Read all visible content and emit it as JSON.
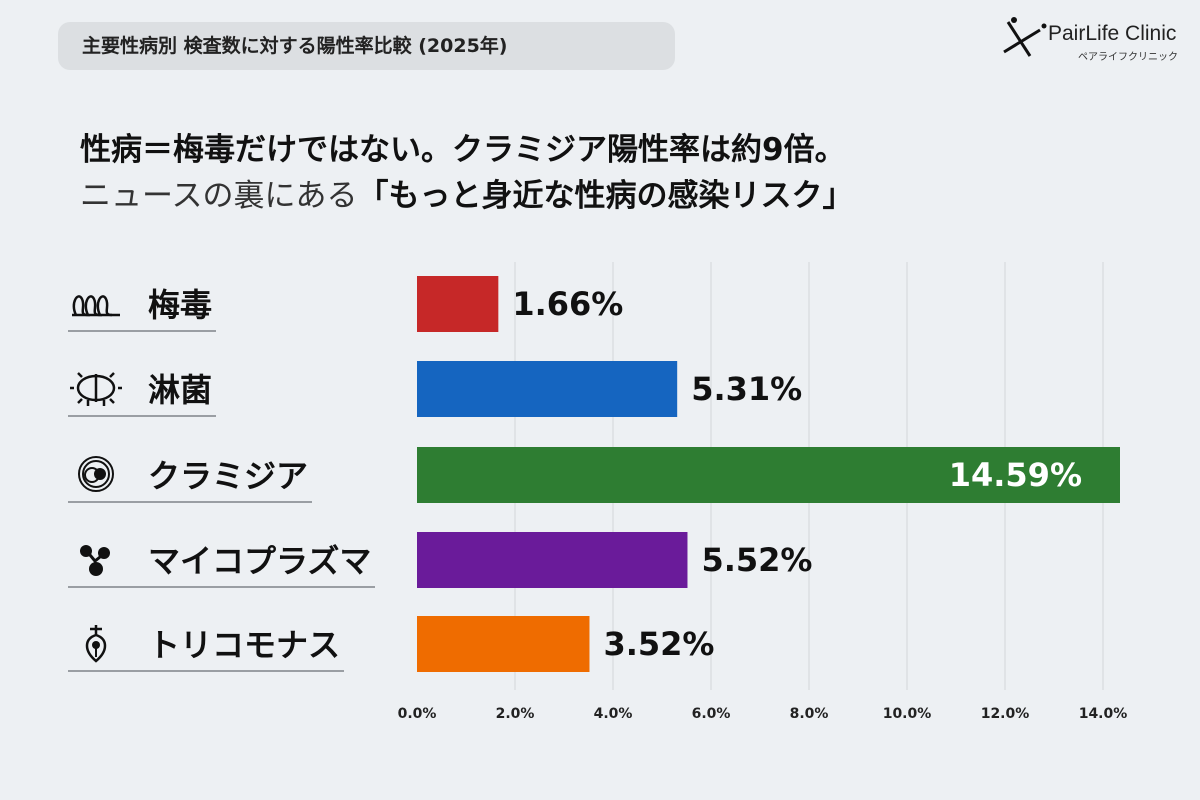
{
  "header": {
    "title": "主要性病別 検査数に対する陽性率比較 (2025年)"
  },
  "logo": {
    "name": "PairLife Clinic",
    "sub": "ペアライフクリニック"
  },
  "headline": {
    "line1": "性病＝梅毒だけではない。クラミジア陽性率は約9倍。",
    "line2_plain": "ニュースの裏にある",
    "line2_bold": "「もっと身近な性病の感染リスク」"
  },
  "chart_data": {
    "type": "bar",
    "orientation": "horizontal",
    "categories": [
      "梅毒",
      "淋菌",
      "クラミジア",
      "マイコプラズマ",
      "トリコモナス"
    ],
    "values": [
      1.66,
      5.31,
      14.59,
      5.52,
      3.52
    ],
    "value_labels": [
      "1.66%",
      "5.31%",
      "14.59%",
      "5.52%",
      "3.52%"
    ],
    "colors": [
      "#c62828",
      "#1565c0",
      "#2e7d32",
      "#6a1b9a",
      "#ef6c00"
    ],
    "icons": [
      "spiral-bacteria-icon",
      "diplococcus-icon",
      "chlamydia-cell-icon",
      "mycoplasma-icon",
      "trichomonas-icon"
    ],
    "xlim": [
      0,
      14
    ],
    "xticks": [
      "0.0%",
      "2.0%",
      "4.0%",
      "6.0%",
      "8.0%",
      "10.0%",
      "12.0%",
      "14.0%"
    ],
    "grid": true
  }
}
